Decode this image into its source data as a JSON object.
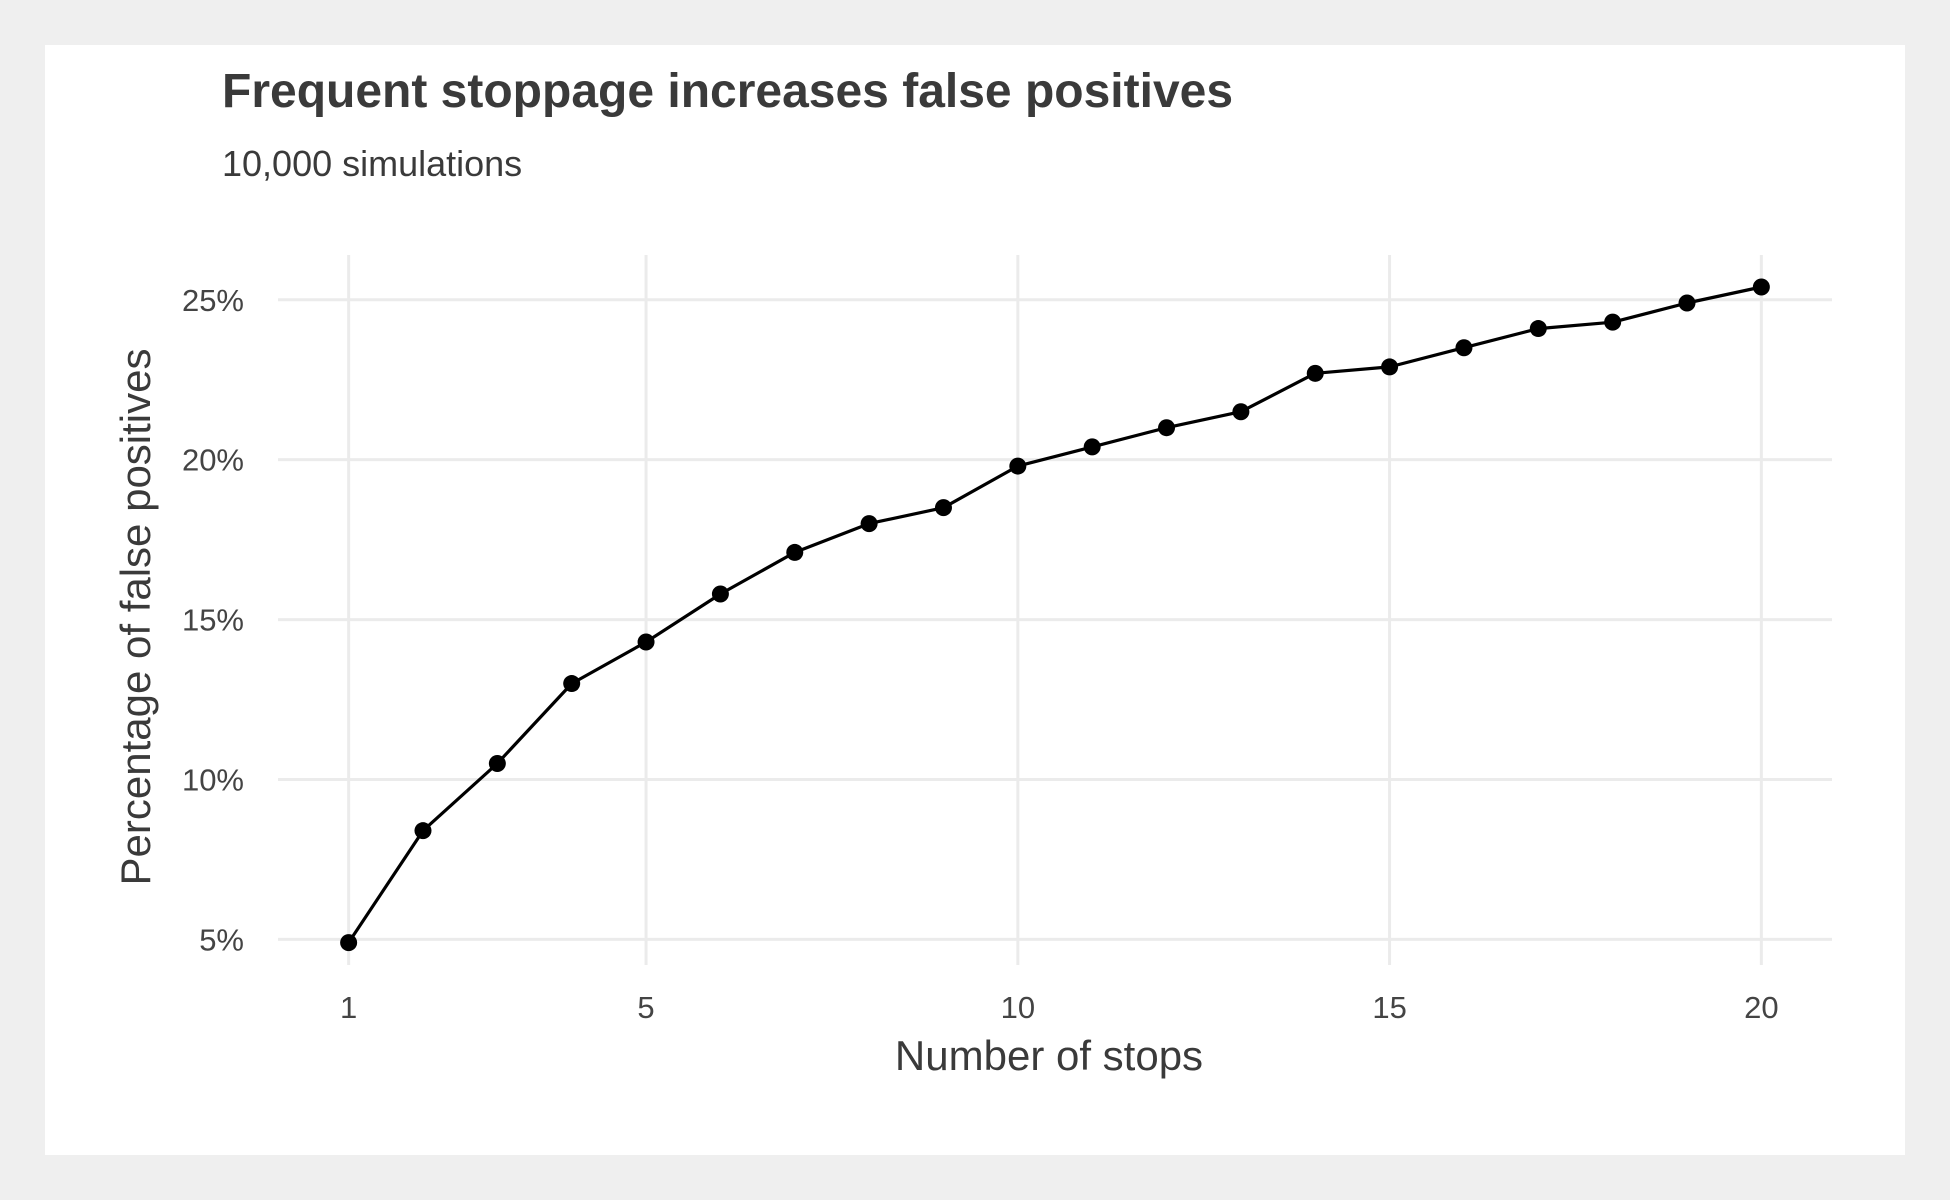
{
  "chart_data": {
    "type": "line",
    "title": "Frequent stoppage increases false positives",
    "subtitle": "10,000 simulations",
    "xlabel": "Number of stops",
    "ylabel": "Percentage of false positives",
    "x_ticks": [
      1,
      5,
      10,
      15,
      20
    ],
    "x_tick_labels": [
      "1",
      "5",
      "10",
      "15",
      "20"
    ],
    "y_ticks": [
      5,
      10,
      15,
      20,
      25
    ],
    "y_tick_labels": [
      "5%",
      "10%",
      "15%",
      "20%",
      "25%"
    ],
    "xlim": [
      0.05,
      20.95
    ],
    "ylim": [
      4.2,
      26.4
    ],
    "grid": true,
    "series": [
      {
        "color": "#000000",
        "x": [
          1,
          2,
          3,
          4,
          5,
          6,
          7,
          8,
          9,
          10,
          11,
          12,
          13,
          14,
          15,
          16,
          17,
          18,
          19,
          20
        ],
        "y": [
          4.9,
          8.4,
          10.5,
          13.0,
          14.3,
          15.8,
          17.1,
          18.0,
          18.5,
          19.8,
          20.4,
          21.0,
          21.5,
          22.7,
          22.9,
          23.5,
          24.1,
          24.3,
          24.9,
          25.4
        ]
      }
    ]
  }
}
